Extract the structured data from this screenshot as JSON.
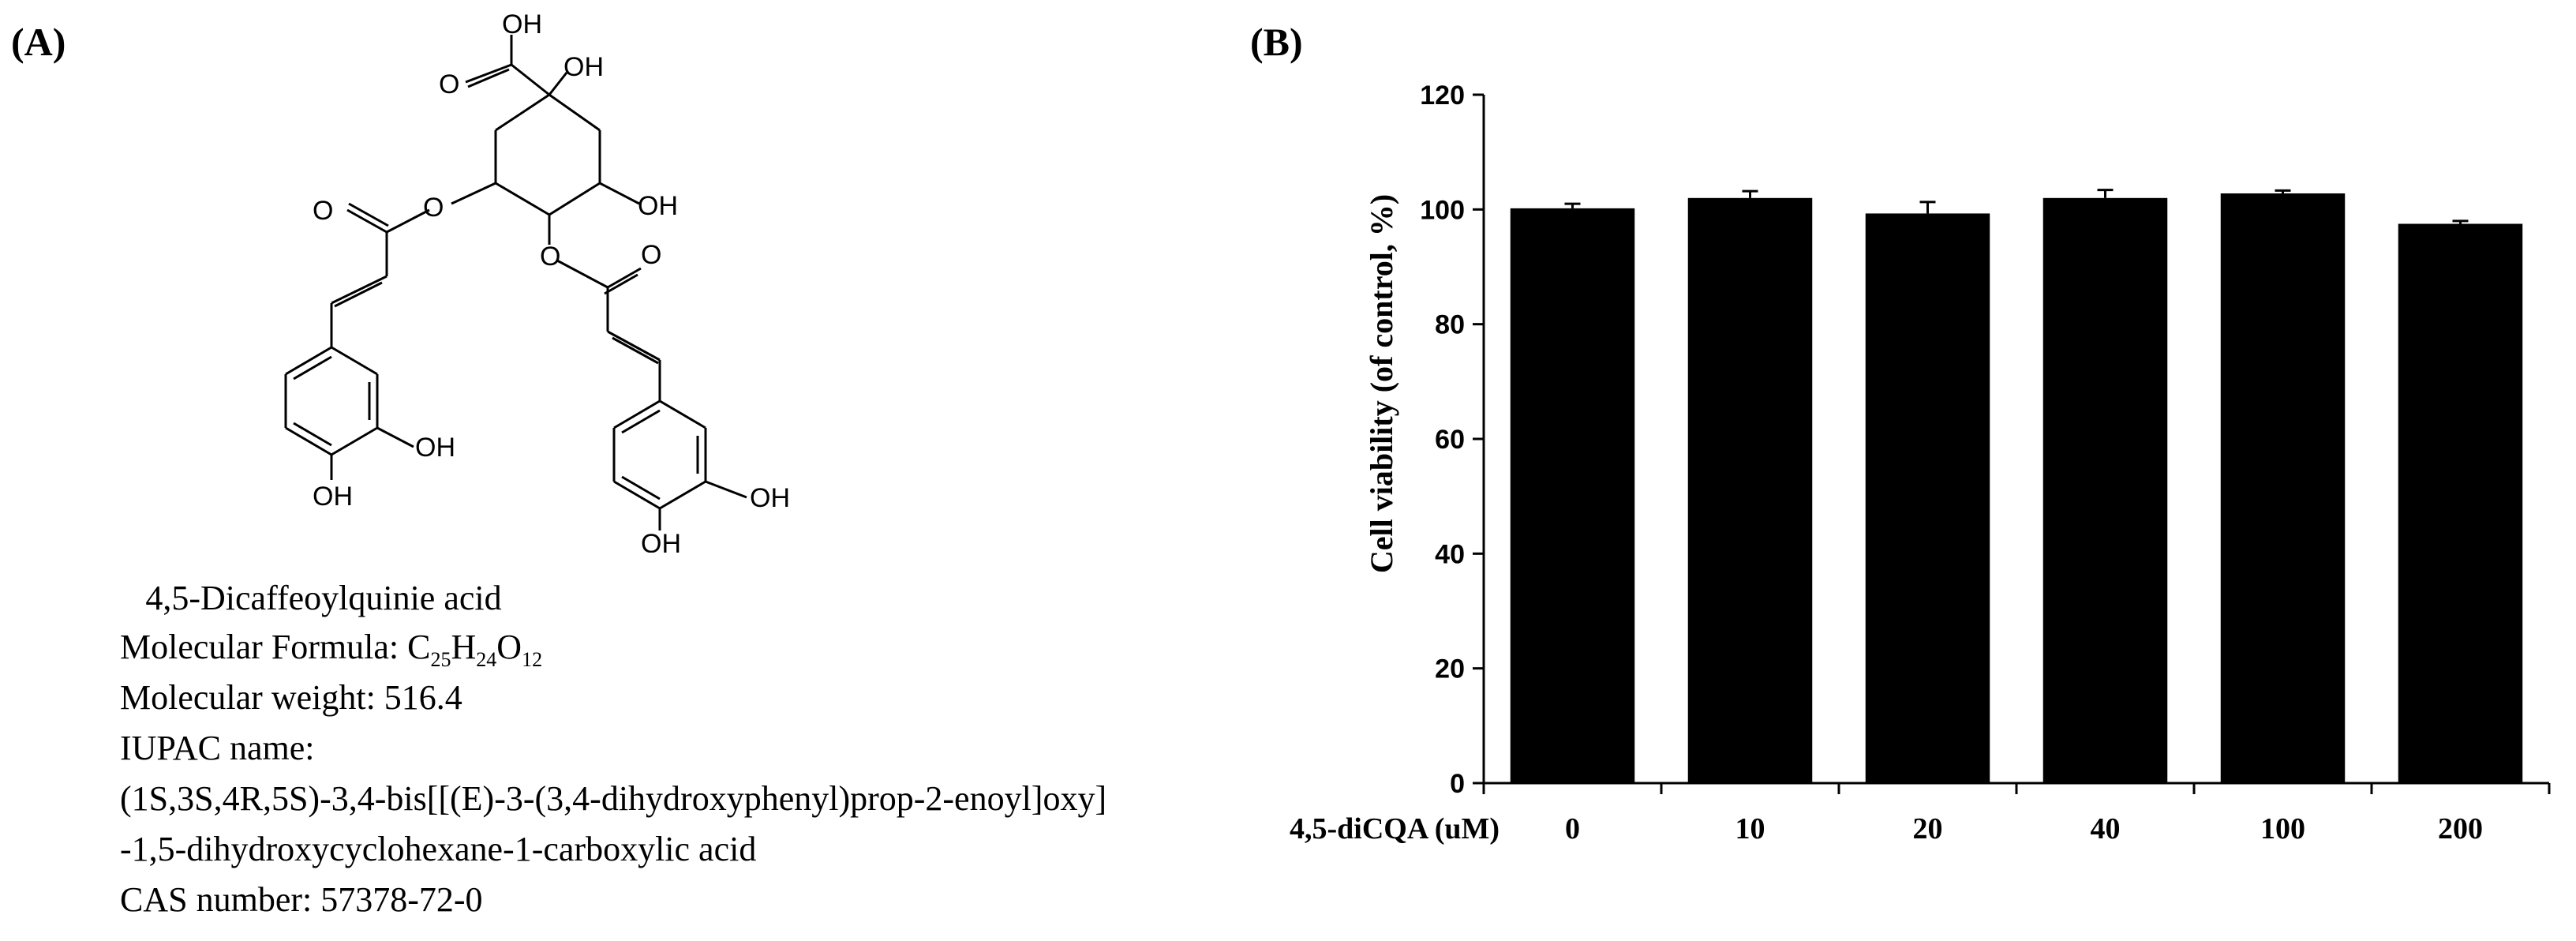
{
  "panel_a": {
    "label": "(A)",
    "structure_labels": {
      "oh_top": "OH",
      "o_carboxyl": "O",
      "oh_c1": "OH",
      "o_ester_left_carbonyl": "O",
      "o_ester_left": "O",
      "oh_c5": "OH",
      "o_ester_right": "O",
      "o_ester_right_carbonyl": "O",
      "oh_ring1_meta": "OH",
      "oh_ring1_para": "OH",
      "oh_ring2_meta": "OH",
      "oh_ring2_para": "OH"
    },
    "compound_name": "4,5-Dicaffeoylquinie acid",
    "formula_label": "Molecular Formula: ",
    "formula": {
      "c": "C",
      "c_n": "25",
      "h": "H",
      "h_n": "24",
      "o": "O",
      "o_n": "12"
    },
    "weight": "Molecular weight: 516.4",
    "iupac_label": "IUPAC name:",
    "iupac_line1": "(1S,3S,4R,5S)-3,4-bis[[(E)-3-(3,4-dihydroxyphenyl)prop-2-enoyl]oxy]",
    "iupac_line2": "-1,5-dihydroxycyclohexane-1-carboxylic acid",
    "cas": "CAS number: 57378-72-0"
  },
  "panel_b": {
    "label": "(B)"
  },
  "chart_data": {
    "type": "bar",
    "title": "",
    "xlabel": "4,5-diCQA (uM)",
    "ylabel": "Cell viability (of control, %)",
    "categories": [
      "0",
      "10",
      "20",
      "40",
      "100",
      "200"
    ],
    "values": [
      100.2,
      102.0,
      99.3,
      102.0,
      102.8,
      97.5
    ],
    "errors": [
      0.8,
      1.2,
      2.0,
      1.4,
      0.5,
      0.5
    ],
    "ylim": [
      0,
      120
    ],
    "yticks": [
      0,
      20,
      40,
      60,
      80,
      100,
      120
    ],
    "grid": false,
    "legend": "none",
    "bar_color": "#000000"
  }
}
